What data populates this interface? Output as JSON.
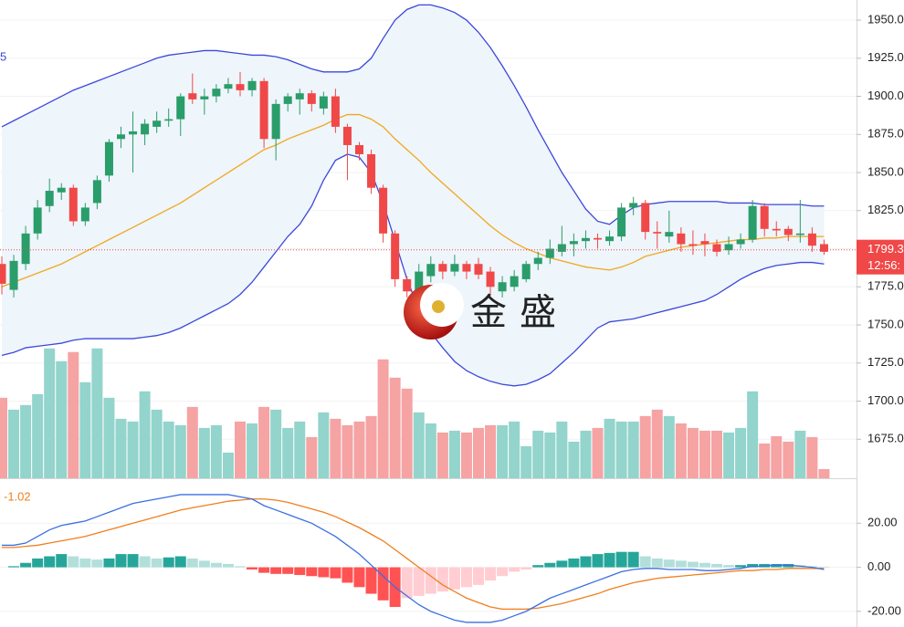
{
  "chart_data": {
    "type": "candlestick",
    "legend_fragment": "5",
    "watermark": "金盛",
    "up_color": "#2a9d6a",
    "down_color": "#f04848",
    "open": [
      1790,
      1773,
      1790,
      1810,
      1828,
      1837,
      1840,
      1818,
      1830,
      1848,
      1872,
      1875,
      1875,
      1880,
      1884,
      1885,
      1902,
      1898,
      1900,
      1905,
      1908,
      1904,
      1910,
      1872,
      1895,
      1898,
      1902,
      1892,
      1900,
      1880,
      1868,
      1862,
      1840,
      1810,
      1780,
      1772,
      1782,
      1790,
      1785,
      1790,
      1790,
      1785,
      1772,
      1775,
      1780,
      1790,
      1794,
      1798,
      1803,
      1805,
      1807,
      1805,
      1808,
      1827,
      1830,
      1811,
      1808,
      1810,
      1803,
      1805,
      1803,
      1799,
      1803,
      1806,
      1828,
      1813,
      1813,
      1809,
      1810,
      1803
    ],
    "high": [
      1795,
      1796,
      1815,
      1832,
      1846,
      1843,
      1842,
      1830,
      1848,
      1872,
      1880,
      1890,
      1885,
      1890,
      1892,
      1902,
      1915,
      1905,
      1908,
      1912,
      1916,
      1912,
      1912,
      1898,
      1902,
      1905,
      1904,
      1903,
      1905,
      1882,
      1870,
      1865,
      1842,
      1812,
      1782,
      1790,
      1795,
      1792,
      1796,
      1792,
      1794,
      1788,
      1782,
      1786,
      1792,
      1798,
      1806,
      1815,
      1810,
      1812,
      1810,
      1812,
      1830,
      1834,
      1832,
      1818,
      1825,
      1814,
      1812,
      1810,
      1806,
      1808,
      1810,
      1832,
      1830,
      1818,
      1815,
      1832,
      1814,
      1806
    ],
    "low": [
      1770,
      1768,
      1786,
      1806,
      1824,
      1832,
      1815,
      1815,
      1826,
      1844,
      1866,
      1850,
      1868,
      1876,
      1880,
      1874,
      1895,
      1888,
      1896,
      1902,
      1900,
      1900,
      1866,
      1858,
      1890,
      1888,
      1890,
      1888,
      1876,
      1845,
      1858,
      1836,
      1804,
      1775,
      1768,
      1768,
      1778,
      1780,
      1782,
      1780,
      1780,
      1770,
      1768,
      1772,
      1778,
      1786,
      1790,
      1795,
      1795,
      1800,
      1800,
      1802,
      1805,
      1822,
      1806,
      1800,
      1804,
      1798,
      1796,
      1795,
      1795,
      1796,
      1800,
      1804,
      1808,
      1808,
      1805,
      1804,
      1798,
      1796
    ],
    "close": [
      1777,
      1792,
      1810,
      1827,
      1838,
      1840,
      1818,
      1827,
      1845,
      1870,
      1875,
      1877,
      1882,
      1884,
      1885,
      1900,
      1898,
      1900,
      1905,
      1908,
      1904,
      1910,
      1872,
      1895,
      1900,
      1902,
      1895,
      1900,
      1880,
      1868,
      1862,
      1840,
      1810,
      1780,
      1772,
      1785,
      1790,
      1785,
      1790,
      1785,
      1783,
      1775,
      1778,
      1782,
      1790,
      1794,
      1800,
      1803,
      1805,
      1807,
      1806,
      1808,
      1827,
      1830,
      1811,
      1810,
      1811,
      1803,
      1802,
      1803,
      1798,
      1803,
      1806,
      1828,
      1813,
      1812,
      1809,
      1810,
      1802,
      1798
    ],
    "ylim": [
      1649.4,
      1963.2
    ],
    "yticks": [
      {
        "value": 1675,
        "label": "1675.00"
      },
      {
        "value": 1700,
        "label": "1700.00"
      },
      {
        "value": 1725,
        "label": "1725.00"
      },
      {
        "value": 1750,
        "label": "1750.00"
      },
      {
        "value": 1775,
        "label": "1775.00"
      },
      {
        "value": 1800,
        "label": "1800.00"
      },
      {
        "value": 1825,
        "label": "1825.00"
      },
      {
        "value": 1850,
        "label": "1850.00"
      },
      {
        "value": 1875,
        "label": "1875.00"
      },
      {
        "value": 1900,
        "label": "1900.00"
      },
      {
        "value": 1925,
        "label": "1925.00"
      },
      {
        "value": 1950,
        "label": "1950.00"
      }
    ],
    "bands": {
      "fill": "#eef5fb",
      "upper": {
        "color": "#3b48d8",
        "values": [
          1880,
          1884,
          1888,
          1892,
          1896,
          1900,
          1904,
          1907,
          1910,
          1913,
          1916,
          1919,
          1922,
          1925,
          1927,
          1928,
          1929,
          1930,
          1930,
          1929,
          1928,
          1927,
          1927,
          1926,
          1924,
          1921,
          1918,
          1916,
          1916,
          1916,
          1918,
          1925,
          1938,
          1950,
          1957,
          1960,
          1960,
          1958,
          1955,
          1950,
          1942,
          1932,
          1920,
          1907,
          1893,
          1878,
          1864,
          1850,
          1838,
          1826,
          1818,
          1816,
          1822,
          1827,
          1829,
          1830,
          1831,
          1831,
          1831,
          1831,
          1831,
          1830,
          1830,
          1830,
          1829,
          1829,
          1829,
          1829,
          1828,
          1828
        ]
      },
      "middle": {
        "color": "#f0a81e",
        "values": [
          1775,
          1778,
          1781,
          1784,
          1787,
          1790,
          1794,
          1798,
          1802,
          1806,
          1810,
          1814,
          1818,
          1822,
          1826,
          1830,
          1835,
          1840,
          1845,
          1850,
          1855,
          1860,
          1865,
          1868,
          1872,
          1875,
          1878,
          1881,
          1885,
          1888,
          1888,
          1885,
          1880,
          1872,
          1865,
          1858,
          1850,
          1843,
          1836,
          1829,
          1822,
          1815,
          1809,
          1804,
          1800,
          1797,
          1794,
          1792,
          1790,
          1788,
          1787,
          1786,
          1788,
          1791,
          1795,
          1797,
          1799,
          1801,
          1802,
          1803,
          1804,
          1805,
          1806,
          1806,
          1807,
          1807,
          1808,
          1808,
          1808,
          1808
        ]
      },
      "lower": {
        "color": "#3b48d8",
        "values": [
          1730,
          1732,
          1735,
          1736,
          1737,
          1738,
          1740,
          1741,
          1741,
          1741,
          1741,
          1741,
          1742,
          1743,
          1745,
          1748,
          1752,
          1756,
          1760,
          1764,
          1770,
          1778,
          1788,
          1798,
          1808,
          1816,
          1828,
          1845,
          1858,
          1862,
          1860,
          1850,
          1830,
          1805,
          1780,
          1760,
          1745,
          1735,
          1726,
          1720,
          1716,
          1713,
          1711,
          1710,
          1711,
          1714,
          1718,
          1725,
          1732,
          1740,
          1748,
          1752,
          1753,
          1754,
          1756,
          1758,
          1760,
          1762,
          1764,
          1766,
          1770,
          1775,
          1780,
          1784,
          1787,
          1789,
          1790,
          1791,
          1791,
          1790
        ]
      }
    },
    "last_price": {
      "value": 1799.3,
      "label": "1799.3",
      "color": "#f04848"
    },
    "countdown": "12:56:",
    "volume": {
      "up_color": "#93d4cc",
      "down_color": "#f5a3a3",
      "ylim": [
        0,
        523
      ],
      "values": [
        88,
        75,
        80,
        92,
        142,
        128,
        138,
        105,
        142,
        88,
        65,
        62,
        95,
        75,
        62,
        58,
        78,
        55,
        58,
        28,
        62,
        60,
        78,
        75,
        55,
        62,
        45,
        72,
        65,
        58,
        62,
        68,
        130,
        110,
        98,
        72,
        60,
        50,
        52,
        50,
        55,
        58,
        58,
        62,
        35,
        52,
        50,
        62,
        40,
        52,
        55,
        65,
        62,
        62,
        68,
        75,
        68,
        60,
        55,
        52,
        52,
        50,
        55,
        95,
        38,
        46,
        40,
        52,
        45,
        10
      ]
    },
    "macd": {
      "readout": -1.02,
      "readout_color": "#f07f1e",
      "ylim": [
        -27.1,
        39.6
      ],
      "yticks": [
        {
          "value": -20,
          "label": "-20.00"
        },
        {
          "value": 0,
          "label": "0.00"
        },
        {
          "value": 20,
          "label": "20.00"
        }
      ],
      "dif": {
        "color": "#3b6fe0",
        "values": [
          10,
          10,
          11,
          14,
          17,
          19,
          20,
          21,
          23,
          25,
          27,
          29,
          30,
          31,
          32,
          33,
          33,
          33,
          33,
          33,
          32,
          31,
          28,
          26,
          24,
          22,
          20,
          17,
          14,
          10,
          6,
          1,
          -4,
          -9,
          -13,
          -17,
          -20,
          -22,
          -24,
          -25,
          -25,
          -25,
          -24,
          -22,
          -20,
          -17,
          -14,
          -12,
          -10,
          -8,
          -6,
          -4,
          -2,
          -1,
          -0.5,
          -0.5,
          -1,
          -1,
          -1,
          -1.5,
          -1.5,
          -1,
          -0.5,
          0.5,
          0.5,
          1,
          1,
          0.5,
          0,
          -1
        ]
      },
      "dea": {
        "color": "#f07f1e",
        "values": [
          9,
          9,
          9.5,
          10,
          11,
          12,
          13,
          14,
          15.5,
          17,
          18.5,
          20,
          21.5,
          23,
          24.5,
          26,
          27,
          28,
          29,
          30,
          30.5,
          31,
          31,
          30.5,
          29.5,
          28,
          26.5,
          25,
          23,
          20.5,
          18,
          15,
          12,
          8,
          4,
          0,
          -4,
          -8,
          -11,
          -14,
          -16,
          -18,
          -19,
          -19,
          -19,
          -18.5,
          -17.5,
          -16.5,
          -15,
          -13.5,
          -12,
          -10,
          -8.5,
          -7,
          -6,
          -5,
          -4.5,
          -4,
          -3.5,
          -3,
          -2.5,
          -2,
          -1.5,
          -1.5,
          -1,
          -1,
          -0.5,
          -0.5,
          -0.5,
          -0.5
        ]
      },
      "hist": {
        "colors": [
          "#26a69a",
          "#b2dfdb",
          "#ff5252",
          "#ffcdd2"
        ],
        "values": [
          0,
          0.5,
          2,
          4,
          5,
          6,
          5,
          4,
          3.5,
          4,
          6,
          6,
          5,
          4,
          4.5,
          5,
          4,
          3,
          2,
          1.5,
          0.5,
          -1,
          -2.5,
          -3,
          -3,
          -3.5,
          -4,
          -4.5,
          -5,
          -7,
          -9,
          -12,
          -15,
          -18,
          -14,
          -13,
          -12,
          -11,
          -10,
          -9,
          -8,
          -6,
          -4,
          -2,
          -1,
          1,
          2,
          3,
          4,
          5,
          6,
          6.5,
          7,
          7,
          5,
          4,
          3.5,
          3,
          2.5,
          2,
          1.5,
          1,
          1,
          1.5,
          1.5,
          1.5,
          1.5,
          1,
          0.5,
          0.3
        ]
      }
    }
  }
}
